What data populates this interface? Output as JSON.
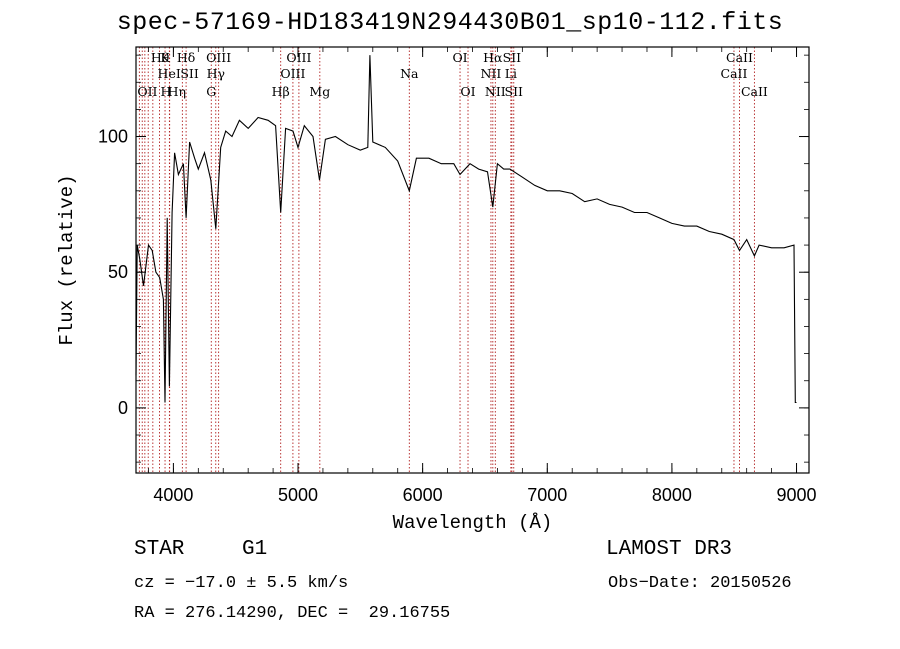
{
  "chart_data": {
    "type": "line",
    "title": "spec-57169-HD183419N294430B01_sp10-112.fits",
    "xlabel": "Wavelength (Å)",
    "ylabel": "Flux (relative)",
    "xlim": [
      3700,
      9100
    ],
    "ylim": [
      -24,
      133
    ],
    "x_ticks": [
      4000,
      5000,
      6000,
      7000,
      8000,
      9000
    ],
    "x_tick_labels": [
      "4000",
      "5000",
      "6000",
      "7000",
      "8000",
      "9000"
    ],
    "y_ticks": [
      0,
      50,
      100
    ],
    "y_tick_labels": [
      "0",
      "50",
      "100"
    ],
    "series": [
      {
        "name": "flux",
        "x": [
          3700,
          3710,
          3730,
          3760,
          3800,
          3830,
          3860,
          3890,
          3920,
          3933,
          3950,
          3968,
          3990,
          4010,
          4040,
          4080,
          4102,
          4130,
          4170,
          4200,
          4250,
          4300,
          4340,
          4380,
          4420,
          4470,
          4530,
          4600,
          4680,
          4760,
          4820,
          4861,
          4900,
          4960,
          5000,
          5050,
          5120,
          5172,
          5220,
          5300,
          5400,
          5500,
          5560,
          5577,
          5600,
          5700,
          5800,
          5893,
          5950,
          6050,
          6150,
          6250,
          6300,
          6380,
          6450,
          6520,
          6563,
          6600,
          6650,
          6700,
          6800,
          6900,
          7000,
          7100,
          7200,
          7300,
          7400,
          7500,
          7600,
          7700,
          7800,
          7900,
          8000,
          8100,
          8200,
          8300,
          8400,
          8498,
          8542,
          8600,
          8662,
          8700,
          8800,
          8900,
          8980,
          8990,
          9000
        ],
        "values": [
          12,
          60,
          55,
          45,
          60,
          58,
          50,
          48,
          40,
          2,
          70,
          8,
          72,
          94,
          86,
          90,
          70,
          98,
          92,
          88,
          94,
          84,
          66,
          96,
          102,
          100,
          106,
          103,
          107,
          106,
          104,
          72,
          103,
          102,
          96,
          104,
          100,
          84,
          99,
          100,
          97,
          95,
          96,
          130,
          98,
          96,
          91,
          80,
          92,
          92,
          90,
          90,
          86,
          90,
          88,
          87,
          74,
          90,
          88,
          88,
          85,
          82,
          80,
          80,
          79,
          76,
          77,
          75,
          74,
          72,
          72,
          70,
          68,
          67,
          67,
          65,
          64,
          62,
          58,
          62,
          56,
          60,
          59,
          59,
          60,
          2,
          2
        ]
      }
    ],
    "lines": [
      {
        "wl": 3727,
        "label": "OII",
        "row": 3,
        "side": "right"
      },
      {
        "wl": 3750,
        "label": "",
        "row": 0,
        "side": "right"
      },
      {
        "wl": 3771,
        "label": "",
        "row": 0,
        "side": "right"
      },
      {
        "wl": 3798,
        "label": "",
        "row": 0,
        "side": "right"
      },
      {
        "wl": 3835,
        "label": "Hθ",
        "row": 1,
        "side": "right"
      },
      {
        "wl": 3889,
        "label": "HeI",
        "row": 2,
        "side": "right"
      },
      {
        "wl": 3933,
        "label": "K",
        "row": 1,
        "side": "center"
      },
      {
        "wl": 3970,
        "label": "Hη",
        "row": 3,
        "side": "right"
      },
      {
        "wl": 3968,
        "label": "H",
        "row": 3,
        "side": "left"
      },
      {
        "wl": 4072,
        "label": "SII",
        "row": 2,
        "side": "right"
      },
      {
        "wl": 4102,
        "label": "Hδ",
        "row": 1,
        "side": "center"
      },
      {
        "wl": 4304,
        "label": "G",
        "row": 3,
        "side": "center"
      },
      {
        "wl": 4340,
        "label": "Hγ",
        "row": 2,
        "side": "center"
      },
      {
        "wl": 4363,
        "label": "OIII",
        "row": 1,
        "side": "center"
      },
      {
        "wl": 4861,
        "label": "Hβ",
        "row": 3,
        "side": "center"
      },
      {
        "wl": 4959,
        "label": "OIII",
        "row": 2,
        "side": "center"
      },
      {
        "wl": 5007,
        "label": "OIII",
        "row": 1,
        "side": "center"
      },
      {
        "wl": 5175,
        "label": "Mg",
        "row": 3,
        "side": "center"
      },
      {
        "wl": 5893,
        "label": "Na",
        "row": 2,
        "side": "center"
      },
      {
        "wl": 6300,
        "label": "OI",
        "row": 1,
        "side": "center"
      },
      {
        "wl": 6364,
        "label": "OI",
        "row": 3,
        "side": "center"
      },
      {
        "wl": 6548,
        "label": "NII",
        "row": 2,
        "side": "center"
      },
      {
        "wl": 6563,
        "label": "Hα",
        "row": 1,
        "side": "center"
      },
      {
        "wl": 6583,
        "label": "NII",
        "row": 3,
        "side": "center"
      },
      {
        "wl": 6708,
        "label": "Li",
        "row": 2,
        "side": "center"
      },
      {
        "wl": 6716,
        "label": "SII",
        "row": 1,
        "side": "center"
      },
      {
        "wl": 6731,
        "label": "SII",
        "row": 3,
        "side": "center"
      },
      {
        "wl": 8498,
        "label": "CaII",
        "row": 2,
        "side": "center"
      },
      {
        "wl": 8542,
        "label": "CaII",
        "row": 1,
        "side": "center"
      },
      {
        "wl": 8662,
        "label": "CaII",
        "row": 3,
        "side": "center"
      }
    ]
  },
  "info": {
    "object_class": "STAR",
    "subclass": "G1",
    "survey": "LAMOST DR3",
    "redshift": "cz = −17.0 ± 5.5 km/s",
    "obs_date": "Obs−Date: 20150526",
    "coords": "RA = 276.14290, DEC =  29.16755"
  }
}
